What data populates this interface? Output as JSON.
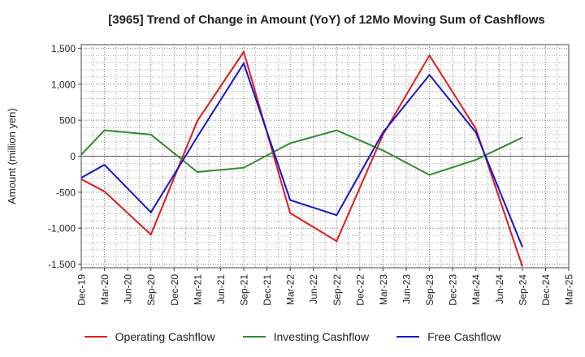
{
  "chart_data": {
    "type": "line",
    "title": "[3965]  Trend of Change in Amount (YoY) of 12Mo Moving Sum of Cashflows",
    "xlabel": "",
    "ylabel": "Amount (million yen)",
    "ylim": [
      -1550,
      1550
    ],
    "yticks": [
      -1500,
      -1000,
      -500,
      0,
      500,
      1000,
      1500
    ],
    "ytick_labels": [
      "-1,500",
      "-1,000",
      "-500",
      "0",
      "500",
      "1,000",
      "1,500"
    ],
    "categories": [
      "Dec-19",
      "Mar-20",
      "Jun-20",
      "Sep-20",
      "Dec-20",
      "Mar-21",
      "Jun-21",
      "Sep-21",
      "Dec-21",
      "Mar-22",
      "Jun-22",
      "Sep-22",
      "Dec-22",
      "Mar-23",
      "Jun-23",
      "Sep-23",
      "Dec-23",
      "Mar-24",
      "Jun-24",
      "Sep-24",
      "Dec-24",
      "Mar-25"
    ],
    "grid": true,
    "legend_position": "bottom",
    "series": [
      {
        "name": "Operating Cashflow",
        "color": "#dd1c1c",
        "values": [
          -320,
          -490,
          null,
          -1090,
          null,
          490,
          null,
          1450,
          null,
          -790,
          null,
          -1180,
          null,
          300,
          null,
          1400,
          null,
          380,
          null,
          -1530,
          null,
          null
        ]
      },
      {
        "name": "Investing Cashflow",
        "color": "#2e8b2e",
        "values": [
          20,
          360,
          null,
          300,
          null,
          -220,
          null,
          -160,
          null,
          180,
          null,
          360,
          null,
          80,
          null,
          -260,
          null,
          -50,
          null,
          260,
          null,
          null
        ]
      },
      {
        "name": "Free Cashflow",
        "color": "#1515cc",
        "values": [
          -300,
          -120,
          null,
          -780,
          null,
          270,
          null,
          1290,
          null,
          -610,
          null,
          -820,
          null,
          330,
          null,
          1130,
          null,
          330,
          null,
          -1260,
          null,
          null
        ]
      }
    ]
  }
}
